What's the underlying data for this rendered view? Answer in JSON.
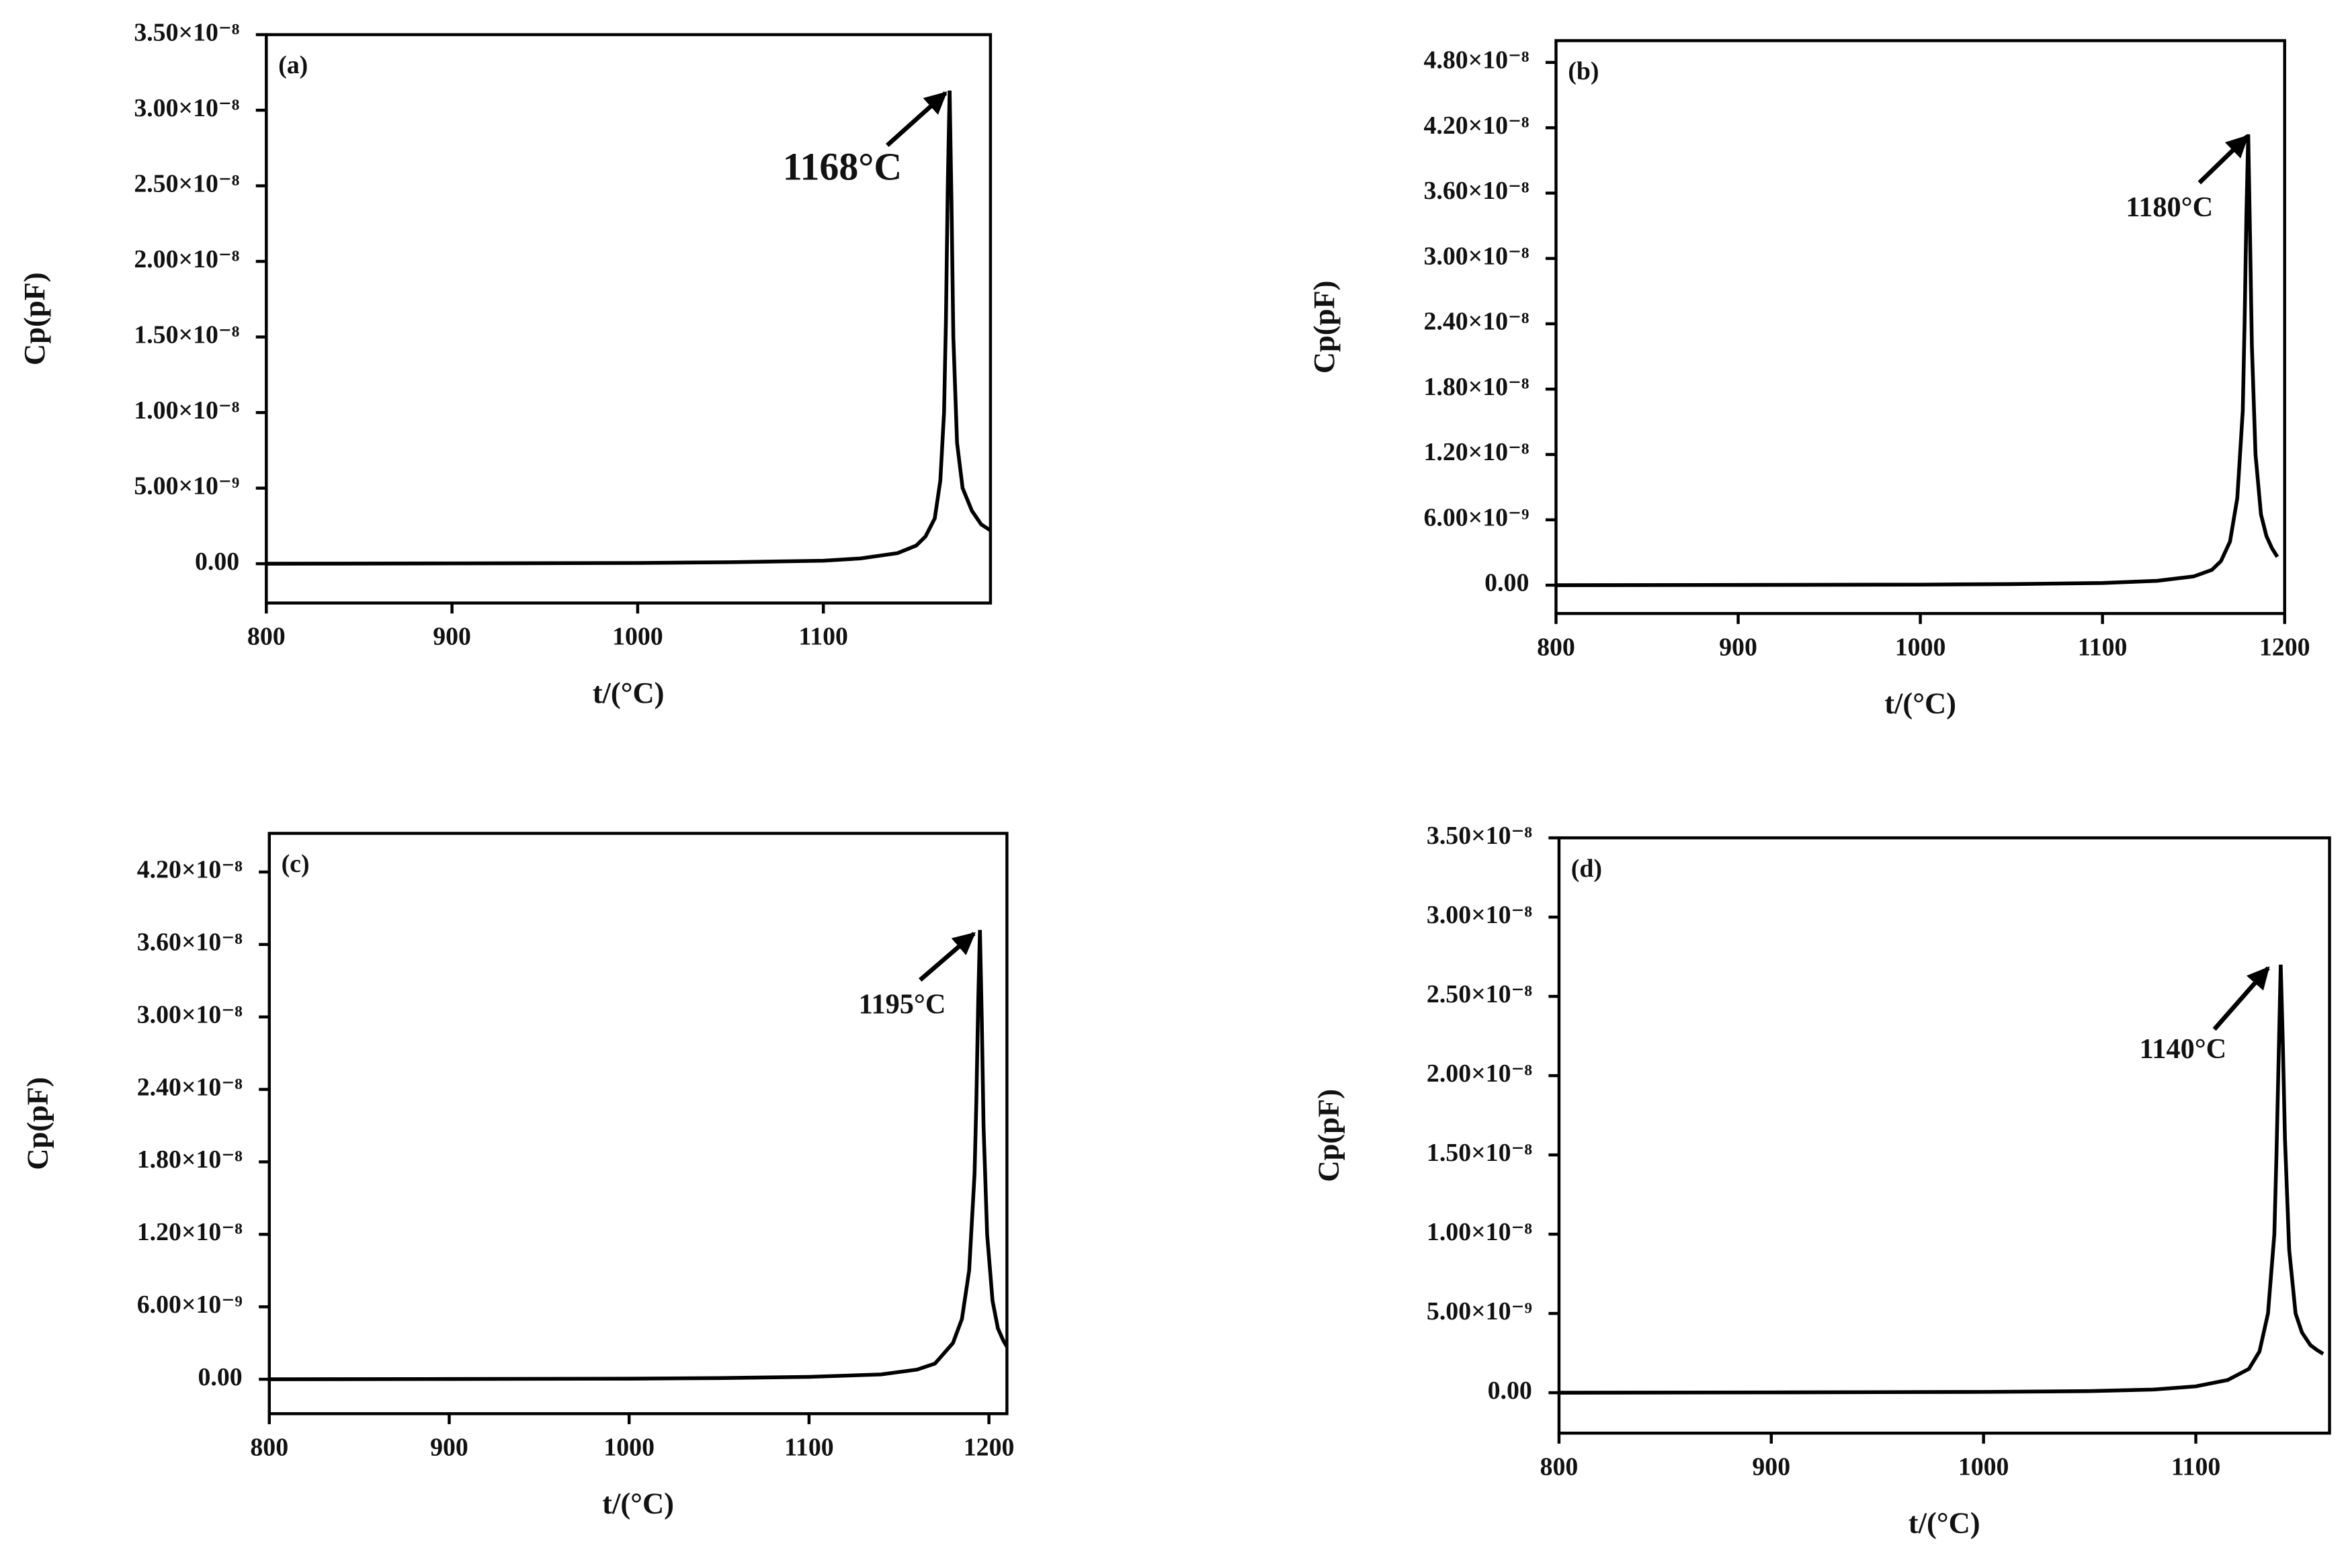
{
  "chart_data": [
    {
      "type": "line",
      "panel_label": "(a)",
      "x_label": "t/(°C)",
      "y_label": "Cp(pF)",
      "annotation": "1168°C",
      "color": "#000000",
      "x": [
        800,
        900,
        1000,
        1050,
        1100,
        1120,
        1140,
        1150,
        1155,
        1160,
        1163,
        1165,
        1166,
        1167,
        1168,
        1169,
        1170,
        1172,
        1175,
        1180,
        1185,
        1190
      ],
      "values": [
        0,
        2e-11,
        5e-11,
        1e-10,
        2e-10,
        3.5e-10,
        7e-10,
        1.2e-09,
        1.8e-09,
        3e-09,
        5.5e-09,
        1e-08,
        1.6e-08,
        2.5e-08,
        3.13e-08,
        2.4e-08,
        1.5e-08,
        8e-09,
        5e-09,
        3.5e-09,
        2.6e-09,
        2.2e-09
      ],
      "xlim": [
        800,
        1190
      ],
      "xticks": [
        800,
        900,
        1000,
        1100
      ],
      "ylim": [
        -2.6e-09,
        3.5e-08
      ],
      "yticks": [
        {
          "value": 0,
          "label": "0.00"
        },
        {
          "value": 5e-09,
          "label": "5.00×10⁻⁹"
        },
        {
          "value": 1e-08,
          "label": "1.00×10⁻⁸"
        },
        {
          "value": 1.5e-08,
          "label": "1.50×10⁻⁸"
        },
        {
          "value": 2e-08,
          "label": "2.00×10⁻⁸"
        },
        {
          "value": 2.5e-08,
          "label": "2.50×10⁻⁸"
        },
        {
          "value": 3e-08,
          "label": "3.00×10⁻⁸"
        },
        {
          "value": 3.5e-08,
          "label": "3.50×10⁻⁸"
        }
      ]
    },
    {
      "type": "line",
      "panel_label": "(b)",
      "x_label": "t/(°C)",
      "y_label": "Cp(pF)",
      "annotation": "1180°C",
      "color": "#000000",
      "x": [
        800,
        900,
        1000,
        1050,
        1100,
        1130,
        1150,
        1160,
        1165,
        1170,
        1174,
        1177,
        1178,
        1179,
        1180,
        1181,
        1182,
        1184,
        1187,
        1190,
        1193,
        1196
      ],
      "values": [
        0,
        2e-11,
        5e-11,
        1e-10,
        2e-10,
        4e-10,
        8e-10,
        1.4e-09,
        2.2e-09,
        4e-09,
        8e-09,
        1.6e-08,
        2.4e-08,
        3.4e-08,
        4.14e-08,
        3.2e-08,
        2.2e-08,
        1.2e-08,
        6.5e-09,
        4.5e-09,
        3.4e-09,
        2.6e-09
      ],
      "xlim": [
        800,
        1200
      ],
      "xticks": [
        800,
        900,
        1000,
        1100,
        1200
      ],
      "ylim": [
        -2.6e-09,
        5e-08
      ],
      "yticks": [
        {
          "value": 0,
          "label": "0.00"
        },
        {
          "value": 6e-09,
          "label": "6.00×10⁻⁹"
        },
        {
          "value": 1.2e-08,
          "label": "1.20×10⁻⁸"
        },
        {
          "value": 1.8e-08,
          "label": "1.80×10⁻⁸"
        },
        {
          "value": 2.4e-08,
          "label": "2.40×10⁻⁸"
        },
        {
          "value": 3e-08,
          "label": "3.00×10⁻⁸"
        },
        {
          "value": 3.6e-08,
          "label": "3.60×10⁻⁸"
        },
        {
          "value": 4.2e-08,
          "label": "4.20×10⁻⁸"
        },
        {
          "value": 4.8e-08,
          "label": "4.80×10⁻⁸"
        }
      ]
    },
    {
      "type": "line",
      "panel_label": "(c)",
      "x_label": "t/(°C)",
      "y_label": "Cp(pF)",
      "annotation": "1195°C",
      "color": "#000000",
      "x": [
        800,
        900,
        1000,
        1050,
        1100,
        1140,
        1160,
        1170,
        1180,
        1185,
        1189,
        1192,
        1193,
        1194,
        1195,
        1196,
        1197,
        1199,
        1202,
        1205,
        1208,
        1210
      ],
      "values": [
        0,
        2e-11,
        5e-11,
        1e-10,
        2e-10,
        4e-10,
        8e-10,
        1.3e-09,
        3e-09,
        5e-09,
        9e-09,
        1.7e-08,
        2.3e-08,
        3.1e-08,
        3.72e-08,
        3e-08,
        2.1e-08,
        1.2e-08,
        6.5e-09,
        4.2e-09,
        3.2e-09,
        2.7e-09
      ],
      "xlim": [
        800,
        1210
      ],
      "xticks": [
        800,
        900,
        1000,
        1100,
        1200
      ],
      "ylim": [
        -2.85e-09,
        4.52e-08
      ],
      "yticks": [
        {
          "value": 0,
          "label": "0.00"
        },
        {
          "value": 6e-09,
          "label": "6.00×10⁻⁹"
        },
        {
          "value": 1.2e-08,
          "label": "1.20×10⁻⁸"
        },
        {
          "value": 1.8e-08,
          "label": "1.80×10⁻⁸"
        },
        {
          "value": 2.4e-08,
          "label": "2.40×10⁻⁸"
        },
        {
          "value": 3e-08,
          "label": "3.00×10⁻⁸"
        },
        {
          "value": 3.6e-08,
          "label": "3.60×10⁻⁸"
        },
        {
          "value": 4.2e-08,
          "label": "4.20×10⁻⁸"
        }
      ]
    },
    {
      "type": "line",
      "panel_label": "(d)",
      "x_label": "t/(°C)",
      "y_label": "Cp(pF)",
      "annotation": "1140°C",
      "color": "#000000",
      "x": [
        800,
        900,
        1000,
        1050,
        1080,
        1100,
        1115,
        1125,
        1130,
        1134,
        1137,
        1138,
        1139,
        1140,
        1141,
        1142,
        1144,
        1147,
        1150,
        1154,
        1157,
        1160
      ],
      "values": [
        0,
        2e-11,
        5e-11,
        1e-10,
        2e-10,
        4e-10,
        8e-10,
        1.5e-09,
        2.6e-09,
        5e-09,
        1e-08,
        1.5e-08,
        2.1e-08,
        2.7e-08,
        2.2e-08,
        1.6e-08,
        9e-09,
        5e-09,
        3.8e-09,
        3e-09,
        2.7e-09,
        2.45e-09
      ],
      "xlim": [
        800,
        1163
      ],
      "xticks": [
        800,
        900,
        1000,
        1100
      ],
      "ylim": [
        -2.55e-09,
        3.5e-08
      ],
      "yticks": [
        {
          "value": 0,
          "label": "0.00"
        },
        {
          "value": 5e-09,
          "label": "5.00×10⁻⁹"
        },
        {
          "value": 1e-08,
          "label": "1.00×10⁻⁸"
        },
        {
          "value": 1.5e-08,
          "label": "1.50×10⁻⁸"
        },
        {
          "value": 2e-08,
          "label": "2.00×10⁻⁸"
        },
        {
          "value": 2.5e-08,
          "label": "2.50×10⁻⁸"
        },
        {
          "value": 3e-08,
          "label": "3.00×10⁻⁸"
        },
        {
          "value": 3.5e-08,
          "label": "3.50×10⁻⁸"
        }
      ]
    }
  ]
}
